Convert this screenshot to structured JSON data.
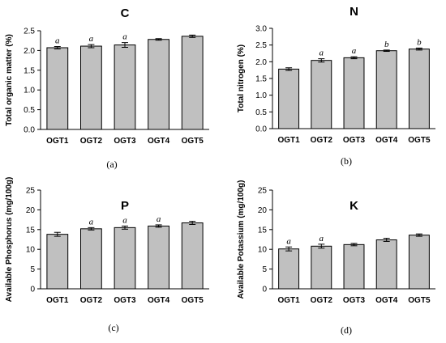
{
  "chart_data": [
    {
      "type": "bar",
      "title": "C",
      "caption": "(a)",
      "ylabel": "Total organic matter (%)",
      "categories": [
        "OGT1",
        "OGT2",
        "OGT3",
        "OGT4",
        "OGT5"
      ],
      "values": [
        2.07,
        2.11,
        2.14,
        2.28,
        2.36
      ],
      "errors": [
        0.03,
        0.04,
        0.06,
        0.02,
        0.03
      ],
      "significance": [
        "a",
        "a",
        "a",
        "",
        ""
      ],
      "ylim": [
        0,
        2.5
      ],
      "yticks": [
        "0.0",
        "0.5",
        "1.0",
        "1.5",
        "2.0",
        "2.5"
      ],
      "bar_color": "#c0c0c0"
    },
    {
      "type": "bar",
      "title": "N",
      "caption": "(b)",
      "ylabel": "Total nitrogen (%)",
      "categories": [
        "OGT1",
        "OGT2",
        "OGT3",
        "OGT4",
        "OGT5"
      ],
      "values": [
        1.78,
        2.04,
        2.12,
        2.33,
        2.38
      ],
      "errors": [
        0.04,
        0.05,
        0.03,
        0.02,
        0.03
      ],
      "significance": [
        "",
        "a",
        "a",
        "b",
        "b"
      ],
      "ylim": [
        0,
        3.0
      ],
      "yticks": [
        "0.0",
        "0.5",
        "1.0",
        "1.5",
        "2.0",
        "2.5",
        "3.0"
      ],
      "bar_color": "#c0c0c0"
    },
    {
      "type": "bar",
      "title": "P",
      "caption": "(c)",
      "ylabel": "Available Phosphorus (mg/100g)",
      "categories": [
        "OGT1",
        "OGT2",
        "OGT3",
        "OGT4",
        "OGT5"
      ],
      "values": [
        13.8,
        15.2,
        15.5,
        15.9,
        16.7
      ],
      "errors": [
        0.5,
        0.3,
        0.4,
        0.3,
        0.4
      ],
      "significance": [
        "",
        "a",
        "a",
        "a",
        ""
      ],
      "ylim": [
        0,
        25
      ],
      "yticks": [
        "0",
        "5",
        "10",
        "15",
        "20",
        "25"
      ],
      "bar_color": "#c0c0c0"
    },
    {
      "type": "bar",
      "title": "K",
      "caption": "(d)",
      "ylabel": "Available Potassium (mg/100g)",
      "categories": [
        "OGT1",
        "OGT2",
        "OGT3",
        "OGT4",
        "OGT5"
      ],
      "values": [
        10.1,
        10.8,
        11.2,
        12.4,
        13.6
      ],
      "errors": [
        0.5,
        0.5,
        0.3,
        0.4,
        0.3
      ],
      "significance": [
        "a",
        "a",
        "",
        "",
        ""
      ],
      "ylim": [
        0,
        25
      ],
      "yticks": [
        "0",
        "5",
        "10",
        "15",
        "20",
        "25"
      ],
      "bar_color": "#c0c0c0"
    }
  ]
}
